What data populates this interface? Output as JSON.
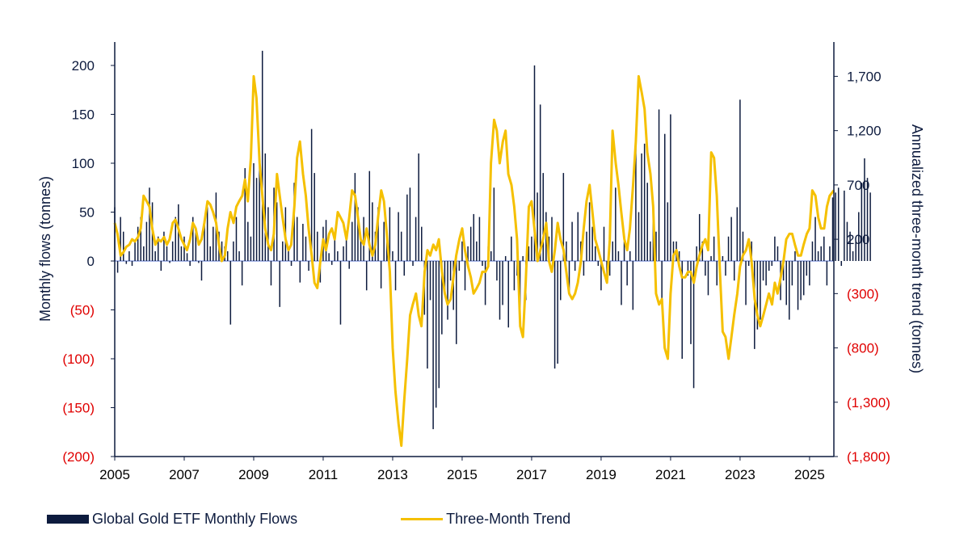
{
  "chart_data": {
    "type": "bar",
    "ylabel": "Monthly flows (tonnes)",
    "y2label": "Annualized three-month trend (tonnes)",
    "ylim": [
      -200,
      220
    ],
    "y2lim": [
      -1800,
      1800
    ],
    "yticks": [
      "(200)",
      "(150)",
      "(100)",
      "(50)",
      "0",
      "50",
      "100",
      "150",
      "200"
    ],
    "ytick_values": [
      -200,
      -150,
      -100,
      -50,
      0,
      50,
      100,
      150,
      200
    ],
    "y2ticks": [
      "(1,800)",
      "(1,300)",
      "(800)",
      "(300)",
      "200",
      "700",
      "1,200",
      "1,700"
    ],
    "y2tick_values": [
      -1800,
      -1300,
      -800,
      -300,
      200,
      700,
      1200,
      1700
    ],
    "xlim": [
      2005,
      2025.7
    ],
    "xticks": [
      "2005",
      "2007",
      "2009",
      "2011",
      "2013",
      "2015",
      "2017",
      "2019",
      "2021",
      "2023",
      "2025"
    ],
    "xtick_values": [
      2005,
      2007,
      2009,
      2011,
      2013,
      2015,
      2017,
      2019,
      2021,
      2023,
      2025
    ],
    "negative_label_color": "#e00000",
    "colors": {
      "bars": "#0d1b3e",
      "line": "#f5c000",
      "zero_line": "#aab8e8",
      "axis": "#0d1b3e"
    },
    "series": [
      {
        "name": "Global Gold ETF Monthly Flows",
        "kind": "bar",
        "x_start": 2005.0,
        "x_step": 0.08333,
        "values": [
          55,
          -12,
          45,
          30,
          -3,
          10,
          -5,
          20,
          35,
          45,
          15,
          40,
          75,
          60,
          10,
          25,
          -10,
          30,
          15,
          -2,
          20,
          45,
          58,
          15,
          25,
          8,
          -5,
          45,
          32,
          -2,
          -20,
          40,
          55,
          15,
          35,
          70,
          30,
          20,
          15,
          10,
          -65,
          20,
          45,
          10,
          -25,
          95,
          40,
          25,
          100,
          85,
          105,
          215,
          110,
          55,
          -25,
          75,
          60,
          -47,
          20,
          55,
          10,
          -5,
          80,
          45,
          -22,
          38,
          25,
          -10,
          135,
          90,
          30,
          -22,
          35,
          42,
          8,
          -4,
          25,
          10,
          -65,
          15,
          22,
          -8,
          40,
          90,
          55,
          25,
          45,
          -30,
          92,
          60,
          30,
          55,
          -28,
          40,
          25,
          55,
          10,
          -30,
          50,
          30,
          -15,
          68,
          75,
          -5,
          45,
          110,
          35,
          -55,
          -110,
          -40,
          -172,
          -150,
          -130,
          -75,
          -30,
          -60,
          -20,
          -50,
          -85,
          -10,
          20,
          -30,
          15,
          35,
          48,
          20,
          45,
          -5,
          -45,
          15,
          10,
          75,
          -20,
          -60,
          -45,
          5,
          -68,
          25,
          -30,
          -15,
          -48,
          5,
          -40,
          15,
          25,
          200,
          70,
          160,
          90,
          50,
          25,
          45,
          -110,
          -105,
          -40,
          90,
          20,
          -35,
          40,
          -10,
          50,
          20,
          -15,
          30,
          60,
          35,
          15,
          -5,
          -30,
          35,
          -20,
          -15,
          20,
          75,
          10,
          -45,
          20,
          -25,
          10,
          -50,
          130,
          50,
          110,
          120,
          80,
          20,
          60,
          30,
          155,
          -40,
          130,
          60,
          150,
          20,
          20,
          10,
          -100,
          0,
          -15,
          -85,
          -130,
          15,
          48,
          20,
          -15,
          -35,
          5,
          25,
          -25,
          -10,
          5,
          -15,
          25,
          45,
          -20,
          55,
          165,
          30,
          -45,
          -5,
          20,
          -90,
          -70,
          -60,
          -20,
          -25,
          -10,
          -5,
          25,
          15,
          -40,
          -20,
          -45,
          -60,
          -25,
          10,
          -50,
          -40,
          -35,
          -15,
          -25,
          20,
          45,
          10,
          15,
          25,
          -25,
          15,
          65,
          70,
          75,
          -5,
          72,
          40,
          30,
          10,
          20,
          50,
          80,
          105,
          85,
          70
        ]
      },
      {
        "name": "Three-Month Trend",
        "kind": "line",
        "x": [
          2005.0,
          2005.08,
          2005.17,
          2005.25,
          2005.33,
          2005.42,
          2005.5,
          2005.58,
          2005.67,
          2005.75,
          2005.83,
          2005.92,
          2006.0,
          2006.08,
          2006.17,
          2006.25,
          2006.33,
          2006.42,
          2006.5,
          2006.58,
          2006.67,
          2006.75,
          2006.83,
          2006.92,
          2007.0,
          2007.08,
          2007.17,
          2007.25,
          2007.33,
          2007.42,
          2007.5,
          2007.58,
          2007.67,
          2007.75,
          2007.83,
          2007.92,
          2008.0,
          2008.08,
          2008.17,
          2008.25,
          2008.33,
          2008.42,
          2008.5,
          2008.58,
          2008.67,
          2008.75,
          2008.83,
          2008.92,
          2009.0,
          2009.08,
          2009.17,
          2009.25,
          2009.33,
          2009.42,
          2009.5,
          2009.58,
          2009.67,
          2009.75,
          2009.83,
          2009.92,
          2010.0,
          2010.08,
          2010.17,
          2010.25,
          2010.33,
          2010.42,
          2010.5,
          2010.58,
          2010.67,
          2010.75,
          2010.83,
          2010.92,
          2011.0,
          2011.08,
          2011.17,
          2011.25,
          2011.33,
          2011.42,
          2011.5,
          2011.58,
          2011.67,
          2011.75,
          2011.83,
          2011.92,
          2012.0,
          2012.08,
          2012.17,
          2012.25,
          2012.33,
          2012.42,
          2012.5,
          2012.58,
          2012.67,
          2012.75,
          2012.83,
          2012.92,
          2013.0,
          2013.08,
          2013.17,
          2013.25,
          2013.33,
          2013.42,
          2013.5,
          2013.58,
          2013.67,
          2013.75,
          2013.83,
          2013.92,
          2014.0,
          2014.08,
          2014.17,
          2014.25,
          2014.33,
          2014.42,
          2014.5,
          2014.58,
          2014.67,
          2014.75,
          2014.83,
          2014.92,
          2015.0,
          2015.08,
          2015.17,
          2015.25,
          2015.33,
          2015.42,
          2015.5,
          2015.58,
          2015.67,
          2015.75,
          2015.83,
          2015.92,
          2016.0,
          2016.08,
          2016.17,
          2016.25,
          2016.33,
          2016.42,
          2016.5,
          2016.58,
          2016.67,
          2016.75,
          2016.83,
          2016.92,
          2017.0,
          2017.08,
          2017.17,
          2017.25,
          2017.33,
          2017.42,
          2017.5,
          2017.58,
          2017.67,
          2017.75,
          2017.83,
          2017.92,
          2018.0,
          2018.08,
          2018.17,
          2018.25,
          2018.33,
          2018.42,
          2018.5,
          2018.58,
          2018.67,
          2018.75,
          2018.83,
          2018.92,
          2019.0,
          2019.08,
          2019.17,
          2019.25,
          2019.33,
          2019.42,
          2019.5,
          2019.58,
          2019.67,
          2019.75,
          2019.83,
          2019.92,
          2020.0,
          2020.08,
          2020.17,
          2020.25,
          2020.33,
          2020.42,
          2020.5,
          2020.58,
          2020.67,
          2020.75,
          2020.83,
          2020.92,
          2021.0,
          2021.08,
          2021.17,
          2021.25,
          2021.33,
          2021.42,
          2021.5,
          2021.58,
          2021.67,
          2021.75,
          2021.83,
          2021.92,
          2022.0,
          2022.08,
          2022.17,
          2022.25,
          2022.33,
          2022.42,
          2022.5,
          2022.58,
          2022.67,
          2022.75,
          2022.83,
          2022.92,
          2023.0,
          2023.08,
          2023.17,
          2023.25,
          2023.33,
          2023.42,
          2023.5,
          2023.58,
          2023.67,
          2023.75,
          2023.83,
          2023.92,
          2024.0,
          2024.08,
          2024.17,
          2024.25,
          2024.33,
          2024.42,
          2024.5,
          2024.58,
          2024.67,
          2024.75,
          2024.83,
          2024.92,
          2025.0,
          2025.08,
          2025.17,
          2025.25,
          2025.33,
          2025.42,
          2025.5,
          2025.58,
          2025.7
        ],
        "values": [
          350,
          250,
          50,
          80,
          130,
          150,
          200,
          180,
          220,
          300,
          600,
          550,
          500,
          300,
          150,
          200,
          180,
          220,
          150,
          200,
          350,
          380,
          300,
          200,
          150,
          100,
          200,
          350,
          300,
          150,
          200,
          350,
          550,
          520,
          450,
          350,
          150,
          0,
          50,
          300,
          450,
          350,
          500,
          550,
          600,
          750,
          550,
          950,
          1700,
          1500,
          900,
          600,
          300,
          150,
          100,
          250,
          800,
          600,
          400,
          200,
          100,
          150,
          500,
          950,
          1100,
          800,
          600,
          300,
          50,
          -200,
          -250,
          0,
          200,
          100,
          250,
          300,
          200,
          450,
          400,
          350,
          200,
          400,
          650,
          600,
          400,
          200,
          150,
          300,
          150,
          50,
          150,
          400,
          650,
          550,
          250,
          -100,
          -800,
          -1200,
          -1500,
          -1700,
          -1300,
          -900,
          -500,
          -400,
          -300,
          -500,
          -600,
          -100,
          100,
          50,
          150,
          100,
          200,
          -100,
          -300,
          -400,
          -350,
          -150,
          50,
          200,
          300,
          100,
          -50,
          -150,
          -300,
          -250,
          -200,
          -100,
          -100,
          -50,
          900,
          1300,
          1200,
          900,
          1100,
          1200,
          800,
          700,
          500,
          200,
          -600,
          -700,
          -200,
          500,
          550,
          300,
          0,
          100,
          200,
          350,
          0,
          -100,
          100,
          350,
          200,
          100,
          -100,
          -300,
          -350,
          -300,
          -200,
          0,
          300,
          550,
          700,
          450,
          200,
          100,
          0,
          -100,
          -200,
          200,
          1200,
          900,
          700,
          450,
          200,
          100,
          300,
          700,
          1100,
          1700,
          1550,
          1400,
          1000,
          800,
          500,
          -300,
          -400,
          -350,
          -800,
          -900,
          -300,
          50,
          100,
          -50,
          -150,
          -150,
          -100,
          -100,
          -200,
          -50,
          50,
          150,
          200,
          100,
          1000,
          950,
          600,
          -100,
          -650,
          -700,
          -900,
          -700,
          -500,
          -300,
          -50,
          50,
          100,
          200,
          0,
          -350,
          -500,
          -600,
          -500,
          -400,
          -300,
          -400,
          -200,
          -300,
          -150,
          0,
          200,
          250,
          250,
          150,
          50,
          50,
          150,
          250,
          300,
          650,
          600,
          400,
          300,
          300,
          500,
          600,
          650
        ]
      }
    ]
  },
  "legend": {
    "bars_label": "Global Gold ETF Monthly Flows",
    "line_label": "Three-Month Trend"
  }
}
